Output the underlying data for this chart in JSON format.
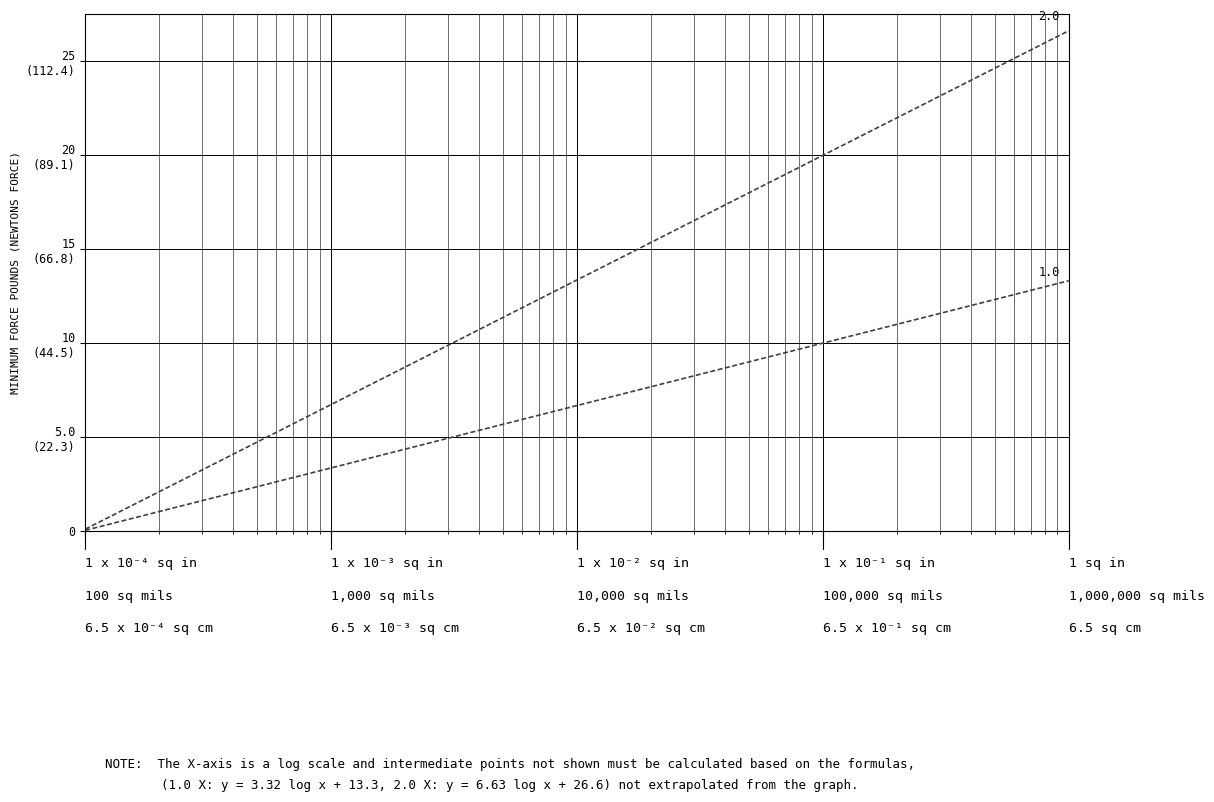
{
  "ylabel": "MINIMUM FORCE POUNDS (NEWTONS FORCE)",
  "yticks": [
    0,
    5.0,
    10,
    15,
    20,
    25
  ],
  "ymax": 27.5,
  "xmin": 0.0001,
  "xmax": 1.0,
  "line1_a": 6.63,
  "line1_b": 26.6,
  "line1_label": "2.0",
  "line2_a": 3.32,
  "line2_b": 13.3,
  "line2_label": "1.0",
  "line_color": "#404040",
  "background_color": "#ffffff",
  "note_line1": "NOTE:  The X-axis is a log scale and intermediate points not shown must be calculated based on the formulas,",
  "note_line2": "(1.0 X: y = 3.32 log x + 13.3, 2.0 X: y = 6.63 log x + 26.6) not extrapolated from the graph.",
  "xlabel_groups": [
    {
      "xval": 0.0001,
      "lines": [
        "1 x 10⁻⁴ sq in",
        "100 sq mils",
        "6.5 x 10⁻⁴ sq cm"
      ]
    },
    {
      "xval": 0.001,
      "lines": [
        "1 x 10⁻³ sq in",
        "1,000 sq mils",
        "6.5 x 10⁻³ sq cm"
      ]
    },
    {
      "xval": 0.01,
      "lines": [
        "1 x 10⁻² sq in",
        "10,000 sq mils",
        "6.5 x 10⁻² sq cm"
      ]
    },
    {
      "xval": 0.1,
      "lines": [
        "1 x 10⁻¹ sq in",
        "100,000 sq mils",
        "6.5 x 10⁻¹ sq cm"
      ]
    },
    {
      "xval": 1.0,
      "lines": [
        "1 sq in",
        "1,000,000 sq mils",
        "6.5 sq cm"
      ]
    }
  ]
}
